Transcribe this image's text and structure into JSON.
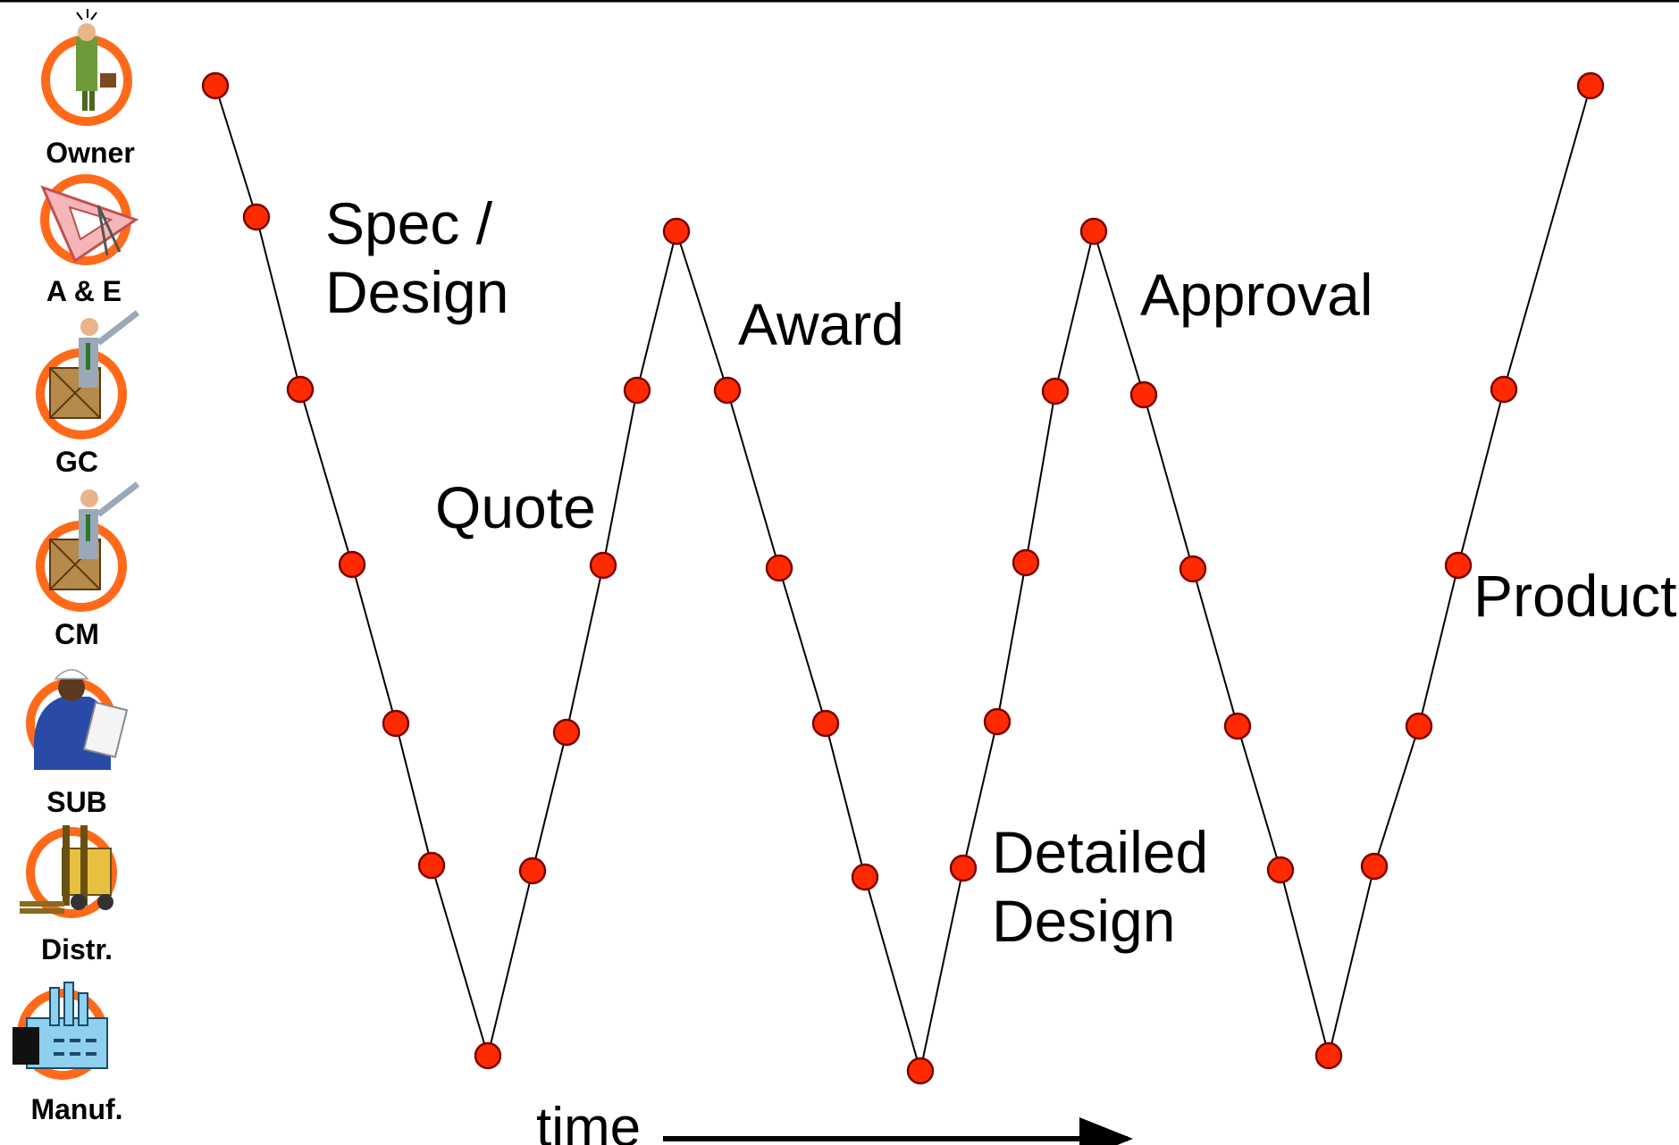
{
  "roles": [
    "Owner",
    "A & E",
    "GC",
    "CM",
    "SUB",
    "Distr.",
    "Manuf."
  ],
  "role_icons": [
    "businessman-icon",
    "drafting-triangle-icon",
    "contractor-crate-icon",
    "contractor-crate-icon",
    "construction-worker-icon",
    "forklift-icon",
    "factory-icon"
  ],
  "phases": {
    "spec": [
      "Spec /",
      "Design"
    ],
    "quote": "Quote",
    "award": "Award",
    "detailed": [
      "Detailed",
      "Design"
    ],
    "approval": "Approval",
    "product": "Product"
  },
  "time_label": "time",
  "colors": {
    "node": "#ff2a00",
    "ring": "#ff6a1a",
    "line": "#000000"
  }
}
